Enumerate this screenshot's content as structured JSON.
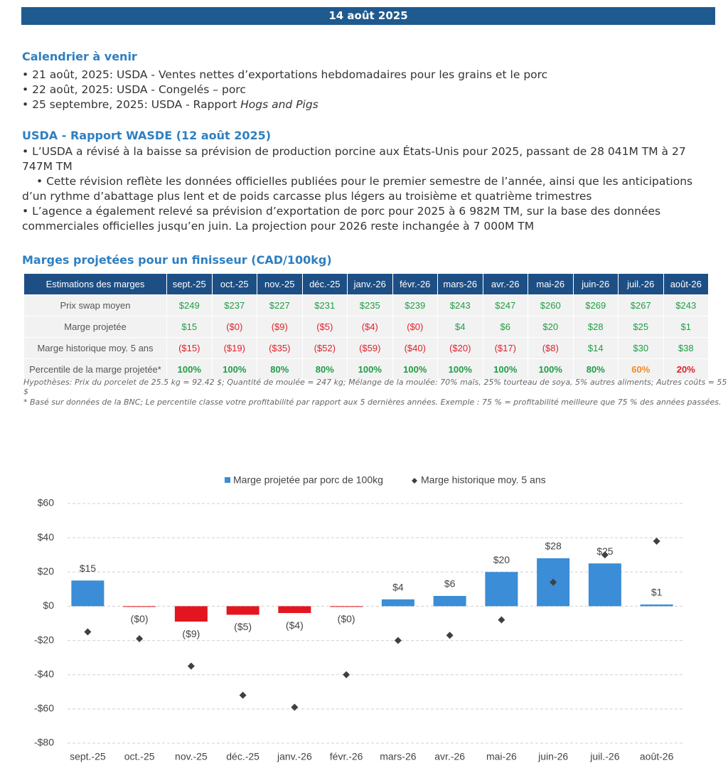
{
  "header": {
    "date": "14 août 2025"
  },
  "calendar": {
    "title": "Calendrier à venir",
    "items": [
      {
        "text": "21 août, 2025: USDA - Ventes nettes d’exportations hebdomadaires pour les grains et le porc"
      },
      {
        "text": "22 août, 2025: USDA - Congelés – porc"
      },
      {
        "text": "25 septembre, 2025: USDA - Rapport ",
        "emphasis": "Hogs and Pigs"
      }
    ]
  },
  "wasde": {
    "title": "USDA - Rapport WASDE (12 août 2025)",
    "bullets": [
      "L’USDA a révisé à la baisse sa prévision de production porcine aux États-Unis pour 2025, passant de 28 041M TM à 27 747M TM",
      "Cette révision reflète les données officielles publiées pour le premier semestre de l’année, ainsi que les anticipations d’un rythme d’abattage plus lent et de poids carcasse plus légers au troisième et quatrième trimestres",
      "L’agence a également relevé sa prévision d’exportation de porc pour 2025 à 6 982M TM, sur la base des données commerciales officielles jusqu’en juin. La projection pour 2026 reste inchangée à 7 000M TM"
    ]
  },
  "margins": {
    "title": "Marges projetées pour un finisseur (CAD/100kg)",
    "table": {
      "header": [
        "Estimations des marges",
        "sept.-25",
        "oct.-25",
        "nov.-25",
        "déc.-25",
        "janv.-26",
        "févr.-26",
        "mars-26",
        "avr.-26",
        "mai-26",
        "juin-26",
        "juil.-26",
        "août-26"
      ],
      "rows": [
        {
          "cells": [
            "Prix swap moyen",
            "$249",
            "$237",
            "$227",
            "$231",
            "$235",
            "$239",
            "$243",
            "$247",
            "$260",
            "$269",
            "$267",
            "$243"
          ],
          "colors": [
            "#1e9e45",
            "#1e9e45",
            "#1e9e45",
            "#1e9e45",
            "#1e9e45",
            "#1e9e45",
            "#1e9e45",
            "#1e9e45",
            "#1e9e45",
            "#1e9e45",
            "#1e9e45",
            "#1e9e45"
          ]
        },
        {
          "cells": [
            "Marge projetée",
            "$15",
            "($0)",
            "($9)",
            "($5)",
            "($4)",
            "($0)",
            "$4",
            "$6",
            "$20",
            "$28",
            "$25",
            "$1"
          ],
          "colors": [
            "#1e9e45",
            "#e0202a",
            "#e0202a",
            "#e0202a",
            "#e0202a",
            "#e0202a",
            "#1e9e45",
            "#1e9e45",
            "#1e9e45",
            "#1e9e45",
            "#1e9e45",
            "#1e9e45"
          ]
        },
        {
          "cells": [
            "Marge historique moy. 5 ans",
            "($15)",
            "($19)",
            "($35)",
            "($52)",
            "($59)",
            "($40)",
            "($20)",
            "($17)",
            "($8)",
            "$14",
            "$30",
            "$38"
          ],
          "colors": [
            "#e0202a",
            "#e0202a",
            "#e0202a",
            "#e0202a",
            "#e0202a",
            "#e0202a",
            "#e0202a",
            "#e0202a",
            "#e0202a",
            "#1e9e45",
            "#1e9e45",
            "#1e9e45"
          ]
        },
        {
          "cells": [
            "Percentile de la marge projetée*",
            "100%",
            "100%",
            "80%",
            "80%",
            "100%",
            "100%",
            "100%",
            "100%",
            "100%",
            "80%",
            "60%",
            "20%"
          ],
          "colors": [
            "#1e9e45",
            "#1e9e45",
            "#1e9e45",
            "#1e9e45",
            "#1e9e45",
            "#1e9e45",
            "#1e9e45",
            "#1e9e45",
            "#1e9e45",
            "#1e9e45",
            "#f28a1e",
            "#e0202a"
          ]
        }
      ]
    },
    "notes": [
      "Hypothèses: Prix du porcelet de 25.5 kg = 92.42 $; Quantité de moulée = 247 kg; Mélange de la moulée: 70% maïs, 25% tourteau de soya, 5% autres aliments; Autres coûts = 55 $",
      "* Basé sur données de la BNC; Le percentile classe votre profitabilité par rapport aux 5 dernières années. Exemple : 75 % = profitabilité meilleure que 75 % des années passées."
    ]
  },
  "chart_data": {
    "type": "bar",
    "categories": [
      "sept.-25",
      "oct.-25",
      "nov.-25",
      "déc.-25",
      "janv.-26",
      "févr.-26",
      "mars-26",
      "avr.-26",
      "mai-26",
      "juin-26",
      "juil.-26",
      "août-26"
    ],
    "series": [
      {
        "name": "Marge projetée par porc de 100kg",
        "color": "#3a8dd6",
        "negative_color": "#e3161f",
        "values": [
          15,
          -0.3,
          -9,
          -5,
          -4,
          -0.3,
          4,
          6,
          20,
          28,
          25,
          1
        ],
        "value_labels": [
          "$15",
          "($0)",
          "($9)",
          "($5)",
          "($4)",
          "($0)",
          "$4",
          "$6",
          "$20",
          "$28",
          "$25",
          "$1"
        ]
      },
      {
        "name": "Marge historique moy. 5 ans",
        "color": "#404040",
        "marker": "diamond",
        "values": [
          -15,
          -19,
          -35,
          -52,
          -59,
          -40,
          -20,
          -17,
          -8,
          14,
          30,
          38
        ]
      }
    ],
    "ylim": [
      -80,
      60
    ],
    "yticks": [
      {
        "value": -80,
        "label": "-$80"
      },
      {
        "value": -60,
        "label": "-$60"
      },
      {
        "value": -40,
        "label": "-$40"
      },
      {
        "value": -20,
        "label": "-$20"
      },
      {
        "value": 0,
        "label": "$0"
      },
      {
        "value": 20,
        "label": "$20"
      },
      {
        "value": 40,
        "label": "$40"
      },
      {
        "value": 60,
        "label": "$60"
      }
    ],
    "grid": true,
    "legend": "top"
  }
}
